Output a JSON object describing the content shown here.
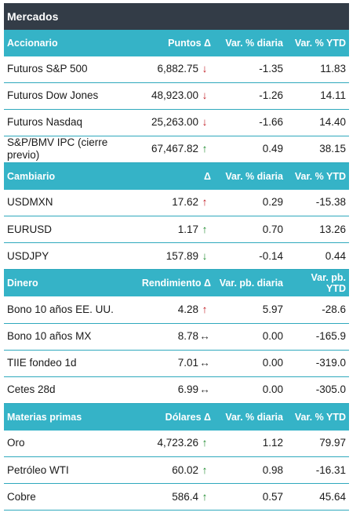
{
  "title": "Mercados",
  "sections": [
    {
      "headers": [
        "Accionario",
        "Puntos Δ",
        "Var. % diaria",
        "Var. % YTD"
      ],
      "rows": [
        {
          "name": "Futuros S&P 500",
          "value": "6,882.75",
          "arrow": "↓",
          "dir": "down",
          "daily": "-1.35",
          "ytd": "11.83"
        },
        {
          "name": "Futuros Dow Jones",
          "value": "48,923.00",
          "arrow": "↓",
          "dir": "down",
          "daily": "-1.26",
          "ytd": "14.11"
        },
        {
          "name": "Futuros Nasdaq",
          "value": "25,263.00",
          "arrow": "↓",
          "dir": "down",
          "daily": "-1.66",
          "ytd": "14.40"
        },
        {
          "name": "S&P/BMV IPC (cierre previo)",
          "value": "67,467.82",
          "arrow": "↑",
          "dir": "up",
          "daily": "0.49",
          "ytd": "38.15"
        }
      ]
    },
    {
      "headers": [
        "Cambiario",
        "Δ",
        "Var. % diaria",
        "Var. % YTD"
      ],
      "rows": [
        {
          "name": "USDMXN",
          "value": "17.62",
          "arrow": "↑",
          "dir": "down",
          "daily": "0.29",
          "ytd": "-15.38"
        },
        {
          "name": "EURUSD",
          "value": "1.17",
          "arrow": "↑",
          "dir": "up",
          "daily": "0.70",
          "ytd": "13.26"
        },
        {
          "name": "USDJPY",
          "value": "157.89",
          "arrow": "↓",
          "dir": "up",
          "daily": "-0.14",
          "ytd": "0.44"
        }
      ]
    },
    {
      "headers": [
        "Dinero",
        "Rendimiento Δ",
        "Var. pb. diaria",
        "Var. pb. YTD"
      ],
      "rows": [
        {
          "name": "Bono 10 años EE. UU.",
          "value": "4.28",
          "arrow": "↑",
          "dir": "down",
          "daily": "5.97",
          "ytd": "-28.6"
        },
        {
          "name": "Bono 10 años MX",
          "value": "8.78",
          "arrow": "↔",
          "dir": "flat",
          "daily": "0.00",
          "ytd": "-165.9"
        },
        {
          "name": "TIIE fondeo 1d",
          "value": "7.01",
          "arrow": "↔",
          "dir": "flat",
          "daily": "0.00",
          "ytd": "-319.0"
        },
        {
          "name": "Cetes 28d",
          "value": "6.99",
          "arrow": "↔",
          "dir": "flat",
          "daily": "0.00",
          "ytd": "-305.0"
        }
      ]
    },
    {
      "headers": [
        "Materias primas",
        "Dólares Δ",
        "Var. % diaria",
        "Var. % YTD"
      ],
      "rows": [
        {
          "name": "Oro",
          "value": "4,723.26",
          "arrow": "↑",
          "dir": "up",
          "daily": "1.12",
          "ytd": "79.97"
        },
        {
          "name": "Petróleo WTI",
          "value": "60.02",
          "arrow": "↑",
          "dir": "up",
          "daily": "0.98",
          "ytd": "-16.31"
        },
        {
          "name": "Cobre",
          "value": "586.4",
          "arrow": "↑",
          "dir": "up",
          "daily": "0.57",
          "ytd": "45.64"
        }
      ]
    }
  ]
}
